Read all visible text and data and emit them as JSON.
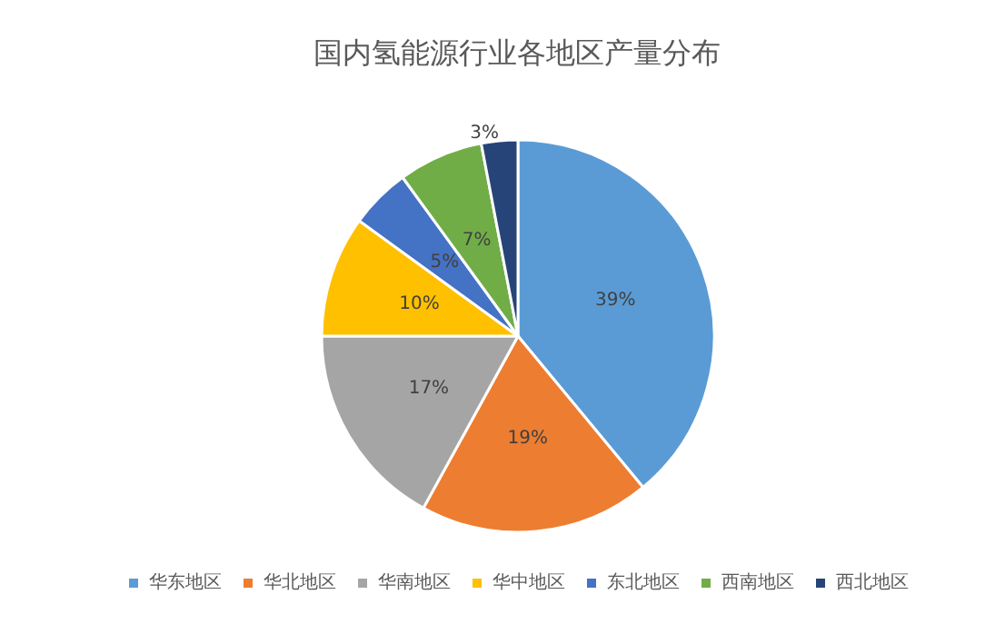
{
  "chart_data": {
    "type": "pie",
    "title": "国内氢能源行业各地区产量分布",
    "categories": [
      "华东地区",
      "华北地区",
      "华南地区",
      "华中地区",
      "东北地区",
      "西南地区",
      "西北地区"
    ],
    "values": [
      39,
      19,
      17,
      10,
      5,
      7,
      3
    ],
    "value_labels": [
      "39%",
      "19%",
      "17%",
      "10%",
      "5%",
      "7%",
      "3%"
    ],
    "colors": [
      "#5b9bd5",
      "#ed7d31",
      "#a5a5a5",
      "#ffc000",
      "#4472c4",
      "#70ad47",
      "#264478"
    ],
    "legend": "bottom"
  }
}
